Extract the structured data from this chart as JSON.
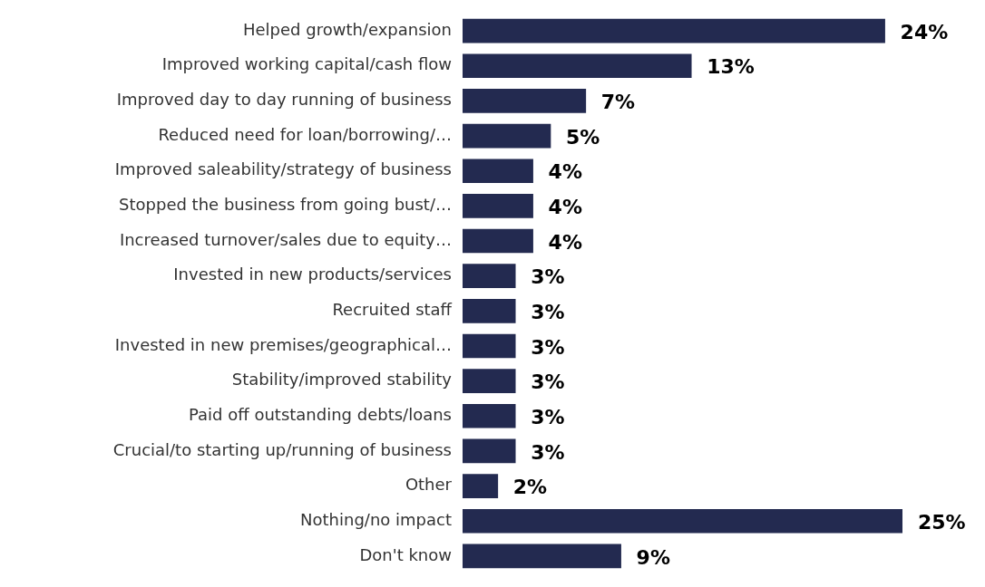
{
  "chart_data": {
    "type": "bar",
    "orientation": "horizontal",
    "legend": false,
    "categories": [
      "Helped growth/expansion",
      "Improved working capital/cash flow",
      "Improved day to day running of business",
      "Reduced need for loan/borrowing/…",
      "Improved saleability/strategy of business",
      "Stopped the business from going bust/…",
      "Increased turnover/sales due to equity…",
      "Invested in new products/services",
      "Recruited staff",
      "Invested in new premises/geographical…",
      "Stability/improved stability",
      "Paid off outstanding debts/loans",
      "Crucial/to starting up/running of business",
      "Other",
      "Nothing/no impact",
      "Don't know"
    ],
    "values": [
      24,
      13,
      7,
      5,
      4,
      4,
      4,
      3,
      3,
      3,
      3,
      3,
      3,
      2,
      25,
      9
    ],
    "value_labels": [
      "24%",
      "13%",
      "7%",
      "5%",
      "4%",
      "4%",
      "4%",
      "3%",
      "3%",
      "3%",
      "3%",
      "3%",
      "3%",
      "2%",
      "25%",
      "9%"
    ],
    "color": "#232a50"
  }
}
